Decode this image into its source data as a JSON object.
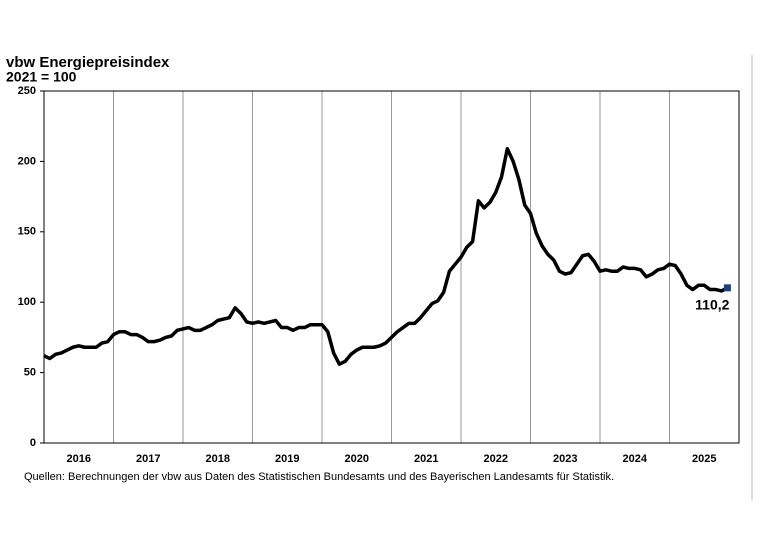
{
  "chart_data": {
    "type": "line",
    "title": "vbw Energiepreisindex",
    "subtitle": "2021 = 100",
    "source": "Quellen: Berechnungen der vbw aus Daten des Statistischen Bundesamts und des Bayerischen Landesamts für Statistik.",
    "categories": [
      null,
      null,
      null,
      null,
      null,
      null,
      "2016",
      null,
      null,
      null,
      null,
      null,
      null,
      null,
      null,
      null,
      null,
      null,
      "2017",
      null,
      null,
      null,
      null,
      null,
      null,
      null,
      null,
      null,
      null,
      null,
      "2018",
      null,
      null,
      null,
      null,
      null,
      null,
      null,
      null,
      null,
      null,
      null,
      "2019",
      null,
      null,
      null,
      null,
      null,
      null,
      null,
      null,
      null,
      null,
      null,
      "2020",
      null,
      null,
      null,
      null,
      null,
      null,
      null,
      null,
      null,
      null,
      null,
      "2021",
      null,
      null,
      null,
      null,
      null,
      null,
      null,
      null,
      null,
      null,
      null,
      "2022",
      null,
      null,
      null,
      null,
      null,
      null,
      null,
      null,
      null,
      null,
      null,
      "2023",
      null,
      null,
      null,
      null,
      null,
      null,
      null,
      null,
      null,
      null,
      null,
      "2024",
      null,
      null,
      null,
      null,
      null,
      null,
      null,
      null,
      null,
      null,
      null,
      "2025",
      null,
      null,
      null,
      null
    ],
    "values": [
      62,
      60,
      63,
      64,
      66,
      68,
      69,
      68,
      68,
      68,
      71,
      72,
      77,
      79,
      79,
      77,
      77,
      75,
      72,
      72,
      73,
      75,
      76,
      80,
      81,
      82,
      80,
      80,
      82,
      84,
      87,
      88,
      89,
      96,
      92,
      86,
      85,
      86,
      85,
      86,
      87,
      82,
      82,
      80,
      82,
      82,
      84,
      84,
      84,
      79,
      64,
      56,
      58,
      63,
      66,
      68,
      68,
      68,
      69,
      71,
      75,
      79,
      82,
      85,
      85,
      89,
      94,
      99,
      101,
      107,
      122,
      127,
      132,
      139,
      143,
      172,
      167,
      171,
      178,
      189,
      209,
      200,
      187,
      169,
      163,
      149,
      140,
      134,
      130,
      122,
      120,
      121,
      127,
      133,
      134,
      129,
      122,
      123,
      122,
      122,
      125,
      124,
      124,
      123,
      118,
      120,
      123,
      124,
      127,
      126,
      120,
      112,
      109,
      112,
      112,
      109,
      109,
      108,
      110.2
    ],
    "value_labels": [
      null,
      null,
      null,
      null,
      null,
      null,
      null,
      null,
      null,
      null,
      null,
      null,
      null,
      null,
      null,
      null,
      null,
      null,
      null,
      null,
      null,
      null,
      null,
      null,
      null,
      null,
      null,
      null,
      null,
      null,
      null,
      null,
      null,
      null,
      null,
      null,
      null,
      null,
      null,
      null,
      null,
      null,
      null,
      null,
      null,
      null,
      null,
      null,
      null,
      null,
      null,
      null,
      null,
      null,
      null,
      null,
      null,
      null,
      null,
      null,
      null,
      null,
      null,
      null,
      null,
      null,
      null,
      null,
      null,
      null,
      null,
      null,
      null,
      null,
      null,
      null,
      null,
      null,
      null,
      null,
      null,
      null,
      null,
      null,
      null,
      null,
      null,
      null,
      null,
      null,
      null,
      null,
      null,
      null,
      null,
      null,
      null,
      null,
      null,
      null,
      null,
      null,
      null,
      null,
      null,
      null,
      null,
      null,
      null,
      null,
      null,
      null,
      null,
      null,
      null,
      null,
      null,
      null,
      "110,2"
    ],
    "color": "#000000",
    "marker_color": "#1f3f7a",
    "ylim": [
      0,
      250
    ],
    "yticks": [
      0,
      50,
      100,
      150,
      200,
      250
    ]
  }
}
